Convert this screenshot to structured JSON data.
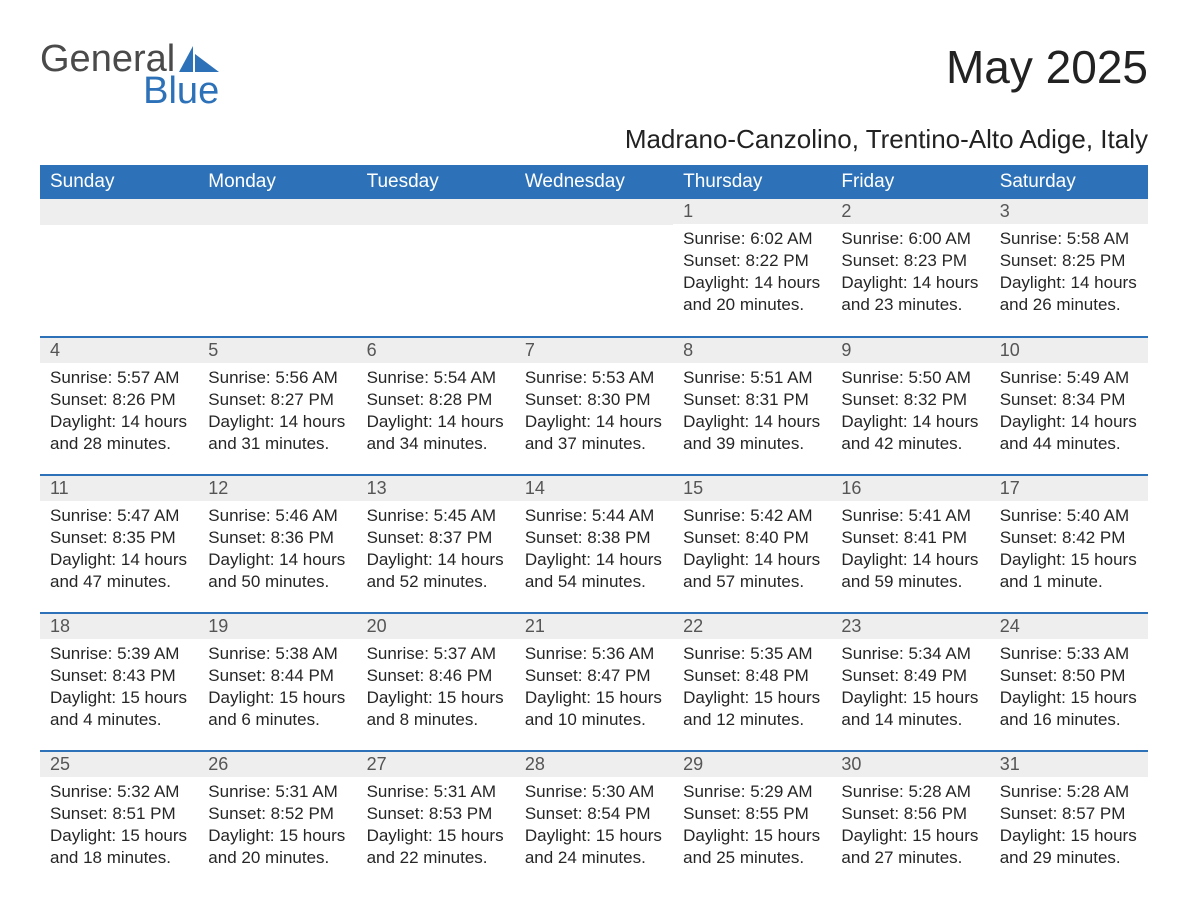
{
  "logo": {
    "line1": "General",
    "line2": "Blue",
    "accent_color": "#2d72b8",
    "text_color": "#4a4a4a"
  },
  "title": "May 2025",
  "subtitle": "Madrano-Canzolino, Trentino-Alto Adige, Italy",
  "colors": {
    "header_bg": "#2d72b8",
    "header_text": "#ffffff",
    "daynum_bg": "#eeeeee",
    "daynum_text": "#555555",
    "body_text": "#262626",
    "row_divider": "#2d72b8",
    "page_bg": "#ffffff"
  },
  "typography": {
    "title_fontsize": 46,
    "subtitle_fontsize": 26,
    "header_fontsize": 19,
    "daynum_fontsize": 18,
    "body_fontsize": 17,
    "font_family": "Segoe UI, Arial, sans-serif"
  },
  "calendar": {
    "columns": [
      "Sunday",
      "Monday",
      "Tuesday",
      "Wednesday",
      "Thursday",
      "Friday",
      "Saturday"
    ],
    "weeks": [
      [
        null,
        null,
        null,
        null,
        {
          "day": "1",
          "sunrise": "Sunrise: 6:02 AM",
          "sunset": "Sunset: 8:22 PM",
          "daylight": "Daylight: 14 hours and 20 minutes."
        },
        {
          "day": "2",
          "sunrise": "Sunrise: 6:00 AM",
          "sunset": "Sunset: 8:23 PM",
          "daylight": "Daylight: 14 hours and 23 minutes."
        },
        {
          "day": "3",
          "sunrise": "Sunrise: 5:58 AM",
          "sunset": "Sunset: 8:25 PM",
          "daylight": "Daylight: 14 hours and 26 minutes."
        }
      ],
      [
        {
          "day": "4",
          "sunrise": "Sunrise: 5:57 AM",
          "sunset": "Sunset: 8:26 PM",
          "daylight": "Daylight: 14 hours and 28 minutes."
        },
        {
          "day": "5",
          "sunrise": "Sunrise: 5:56 AM",
          "sunset": "Sunset: 8:27 PM",
          "daylight": "Daylight: 14 hours and 31 minutes."
        },
        {
          "day": "6",
          "sunrise": "Sunrise: 5:54 AM",
          "sunset": "Sunset: 8:28 PM",
          "daylight": "Daylight: 14 hours and 34 minutes."
        },
        {
          "day": "7",
          "sunrise": "Sunrise: 5:53 AM",
          "sunset": "Sunset: 8:30 PM",
          "daylight": "Daylight: 14 hours and 37 minutes."
        },
        {
          "day": "8",
          "sunrise": "Sunrise: 5:51 AM",
          "sunset": "Sunset: 8:31 PM",
          "daylight": "Daylight: 14 hours and 39 minutes."
        },
        {
          "day": "9",
          "sunrise": "Sunrise: 5:50 AM",
          "sunset": "Sunset: 8:32 PM",
          "daylight": "Daylight: 14 hours and 42 minutes."
        },
        {
          "day": "10",
          "sunrise": "Sunrise: 5:49 AM",
          "sunset": "Sunset: 8:34 PM",
          "daylight": "Daylight: 14 hours and 44 minutes."
        }
      ],
      [
        {
          "day": "11",
          "sunrise": "Sunrise: 5:47 AM",
          "sunset": "Sunset: 8:35 PM",
          "daylight": "Daylight: 14 hours and 47 minutes."
        },
        {
          "day": "12",
          "sunrise": "Sunrise: 5:46 AM",
          "sunset": "Sunset: 8:36 PM",
          "daylight": "Daylight: 14 hours and 50 minutes."
        },
        {
          "day": "13",
          "sunrise": "Sunrise: 5:45 AM",
          "sunset": "Sunset: 8:37 PM",
          "daylight": "Daylight: 14 hours and 52 minutes."
        },
        {
          "day": "14",
          "sunrise": "Sunrise: 5:44 AM",
          "sunset": "Sunset: 8:38 PM",
          "daylight": "Daylight: 14 hours and 54 minutes."
        },
        {
          "day": "15",
          "sunrise": "Sunrise: 5:42 AM",
          "sunset": "Sunset: 8:40 PM",
          "daylight": "Daylight: 14 hours and 57 minutes."
        },
        {
          "day": "16",
          "sunrise": "Sunrise: 5:41 AM",
          "sunset": "Sunset: 8:41 PM",
          "daylight": "Daylight: 14 hours and 59 minutes."
        },
        {
          "day": "17",
          "sunrise": "Sunrise: 5:40 AM",
          "sunset": "Sunset: 8:42 PM",
          "daylight": "Daylight: 15 hours and 1 minute."
        }
      ],
      [
        {
          "day": "18",
          "sunrise": "Sunrise: 5:39 AM",
          "sunset": "Sunset: 8:43 PM",
          "daylight": "Daylight: 15 hours and 4 minutes."
        },
        {
          "day": "19",
          "sunrise": "Sunrise: 5:38 AM",
          "sunset": "Sunset: 8:44 PM",
          "daylight": "Daylight: 15 hours and 6 minutes."
        },
        {
          "day": "20",
          "sunrise": "Sunrise: 5:37 AM",
          "sunset": "Sunset: 8:46 PM",
          "daylight": "Daylight: 15 hours and 8 minutes."
        },
        {
          "day": "21",
          "sunrise": "Sunrise: 5:36 AM",
          "sunset": "Sunset: 8:47 PM",
          "daylight": "Daylight: 15 hours and 10 minutes."
        },
        {
          "day": "22",
          "sunrise": "Sunrise: 5:35 AM",
          "sunset": "Sunset: 8:48 PM",
          "daylight": "Daylight: 15 hours and 12 minutes."
        },
        {
          "day": "23",
          "sunrise": "Sunrise: 5:34 AM",
          "sunset": "Sunset: 8:49 PM",
          "daylight": "Daylight: 15 hours and 14 minutes."
        },
        {
          "day": "24",
          "sunrise": "Sunrise: 5:33 AM",
          "sunset": "Sunset: 8:50 PM",
          "daylight": "Daylight: 15 hours and 16 minutes."
        }
      ],
      [
        {
          "day": "25",
          "sunrise": "Sunrise: 5:32 AM",
          "sunset": "Sunset: 8:51 PM",
          "daylight": "Daylight: 15 hours and 18 minutes."
        },
        {
          "day": "26",
          "sunrise": "Sunrise: 5:31 AM",
          "sunset": "Sunset: 8:52 PM",
          "daylight": "Daylight: 15 hours and 20 minutes."
        },
        {
          "day": "27",
          "sunrise": "Sunrise: 5:31 AM",
          "sunset": "Sunset: 8:53 PM",
          "daylight": "Daylight: 15 hours and 22 minutes."
        },
        {
          "day": "28",
          "sunrise": "Sunrise: 5:30 AM",
          "sunset": "Sunset: 8:54 PM",
          "daylight": "Daylight: 15 hours and 24 minutes."
        },
        {
          "day": "29",
          "sunrise": "Sunrise: 5:29 AM",
          "sunset": "Sunset: 8:55 PM",
          "daylight": "Daylight: 15 hours and 25 minutes."
        },
        {
          "day": "30",
          "sunrise": "Sunrise: 5:28 AM",
          "sunset": "Sunset: 8:56 PM",
          "daylight": "Daylight: 15 hours and 27 minutes."
        },
        {
          "day": "31",
          "sunrise": "Sunrise: 5:28 AM",
          "sunset": "Sunset: 8:57 PM",
          "daylight": "Daylight: 15 hours and 29 minutes."
        }
      ]
    ]
  }
}
